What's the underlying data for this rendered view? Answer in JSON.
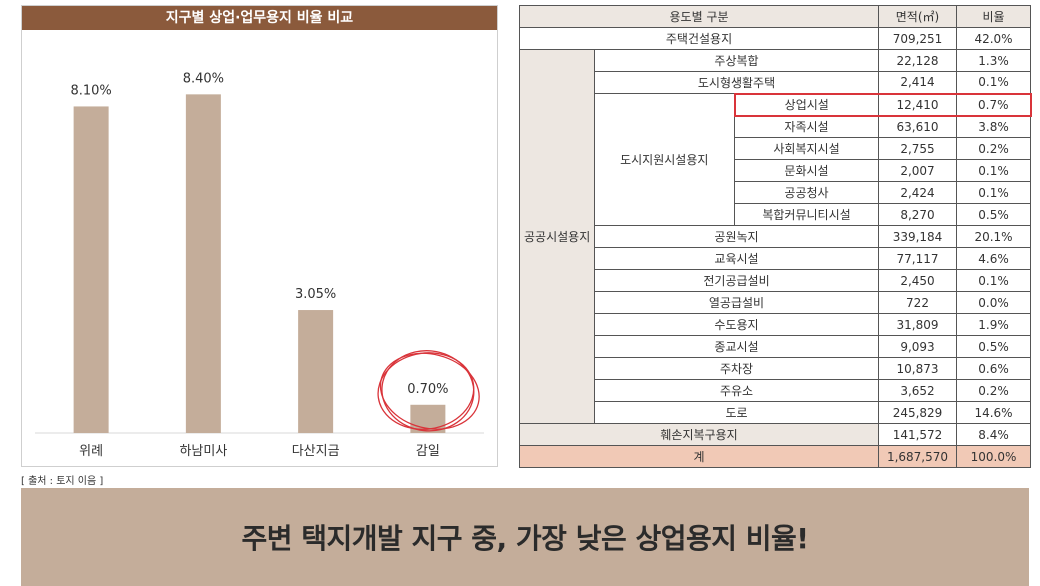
{
  "chart_data": {
    "type": "bar",
    "title": "지구별 상업·업무용지 비율 비교",
    "categories": [
      "위례",
      "하남미사",
      "다산지금",
      "감일"
    ],
    "values": [
      8.1,
      8.4,
      3.05,
      0.7
    ],
    "value_labels": [
      "8.10%",
      "8.40%",
      "3.05%",
      "0.70%"
    ],
    "ylim": [
      0,
      9.5
    ],
    "grid": false,
    "bar_color": "#c4ad9a",
    "highlight_category": "감일",
    "highlight_color": "#d9343a"
  },
  "source_note": "[ 출처 : 토지 이음 ]",
  "table": {
    "headers": {
      "category": "용도별 구분",
      "area": "면적(㎡)",
      "ratio": "비율"
    },
    "housing": {
      "label": "주택건설용지",
      "area": "709,251",
      "ratio": "42.0%"
    },
    "public": {
      "label": "공공시설용지",
      "rows_before": [
        {
          "label": "주상복합",
          "area": "22,128",
          "ratio": "1.3%"
        },
        {
          "label": "도시형생활주택",
          "area": "2,414",
          "ratio": "0.1%"
        }
      ],
      "support": {
        "label": "도시지원시설용지",
        "rows": [
          {
            "label": "상업시설",
            "area": "12,410",
            "ratio": "0.7%"
          },
          {
            "label": "자족시설",
            "area": "63,610",
            "ratio": "3.8%"
          },
          {
            "label": "사회복지시설",
            "area": "2,755",
            "ratio": "0.2%"
          },
          {
            "label": "문화시설",
            "area": "2,007",
            "ratio": "0.1%"
          },
          {
            "label": "공공청사",
            "area": "2,424",
            "ratio": "0.1%"
          },
          {
            "label": "복합커뮤니티시설",
            "area": "8,270",
            "ratio": "0.5%"
          }
        ]
      },
      "rows_after": [
        {
          "label": "공원녹지",
          "area": "339,184",
          "ratio": "20.1%"
        },
        {
          "label": "교육시설",
          "area": "77,117",
          "ratio": "4.6%"
        },
        {
          "label": "전기공급설비",
          "area": "2,450",
          "ratio": "0.1%"
        },
        {
          "label": "열공급설비",
          "area": "722",
          "ratio": "0.0%"
        },
        {
          "label": "수도용지",
          "area": "31,809",
          "ratio": "1.9%"
        },
        {
          "label": "종교시설",
          "area": "9,093",
          "ratio": "0.5%"
        },
        {
          "label": "주차장",
          "area": "10,873",
          "ratio": "0.6%"
        },
        {
          "label": "주유소",
          "area": "3,652",
          "ratio": "0.2%"
        },
        {
          "label": "도로",
          "area": "245,829",
          "ratio": "14.6%"
        }
      ]
    },
    "restoration": {
      "label": "훼손지복구용지",
      "area": "141,572",
      "ratio": "8.4%"
    },
    "total": {
      "label": "계",
      "area": "1,687,570",
      "ratio": "100.0%"
    }
  },
  "banner": {
    "text": "주변 택지개발 지구 중, 가장 낮은 상업용지 비율!"
  }
}
